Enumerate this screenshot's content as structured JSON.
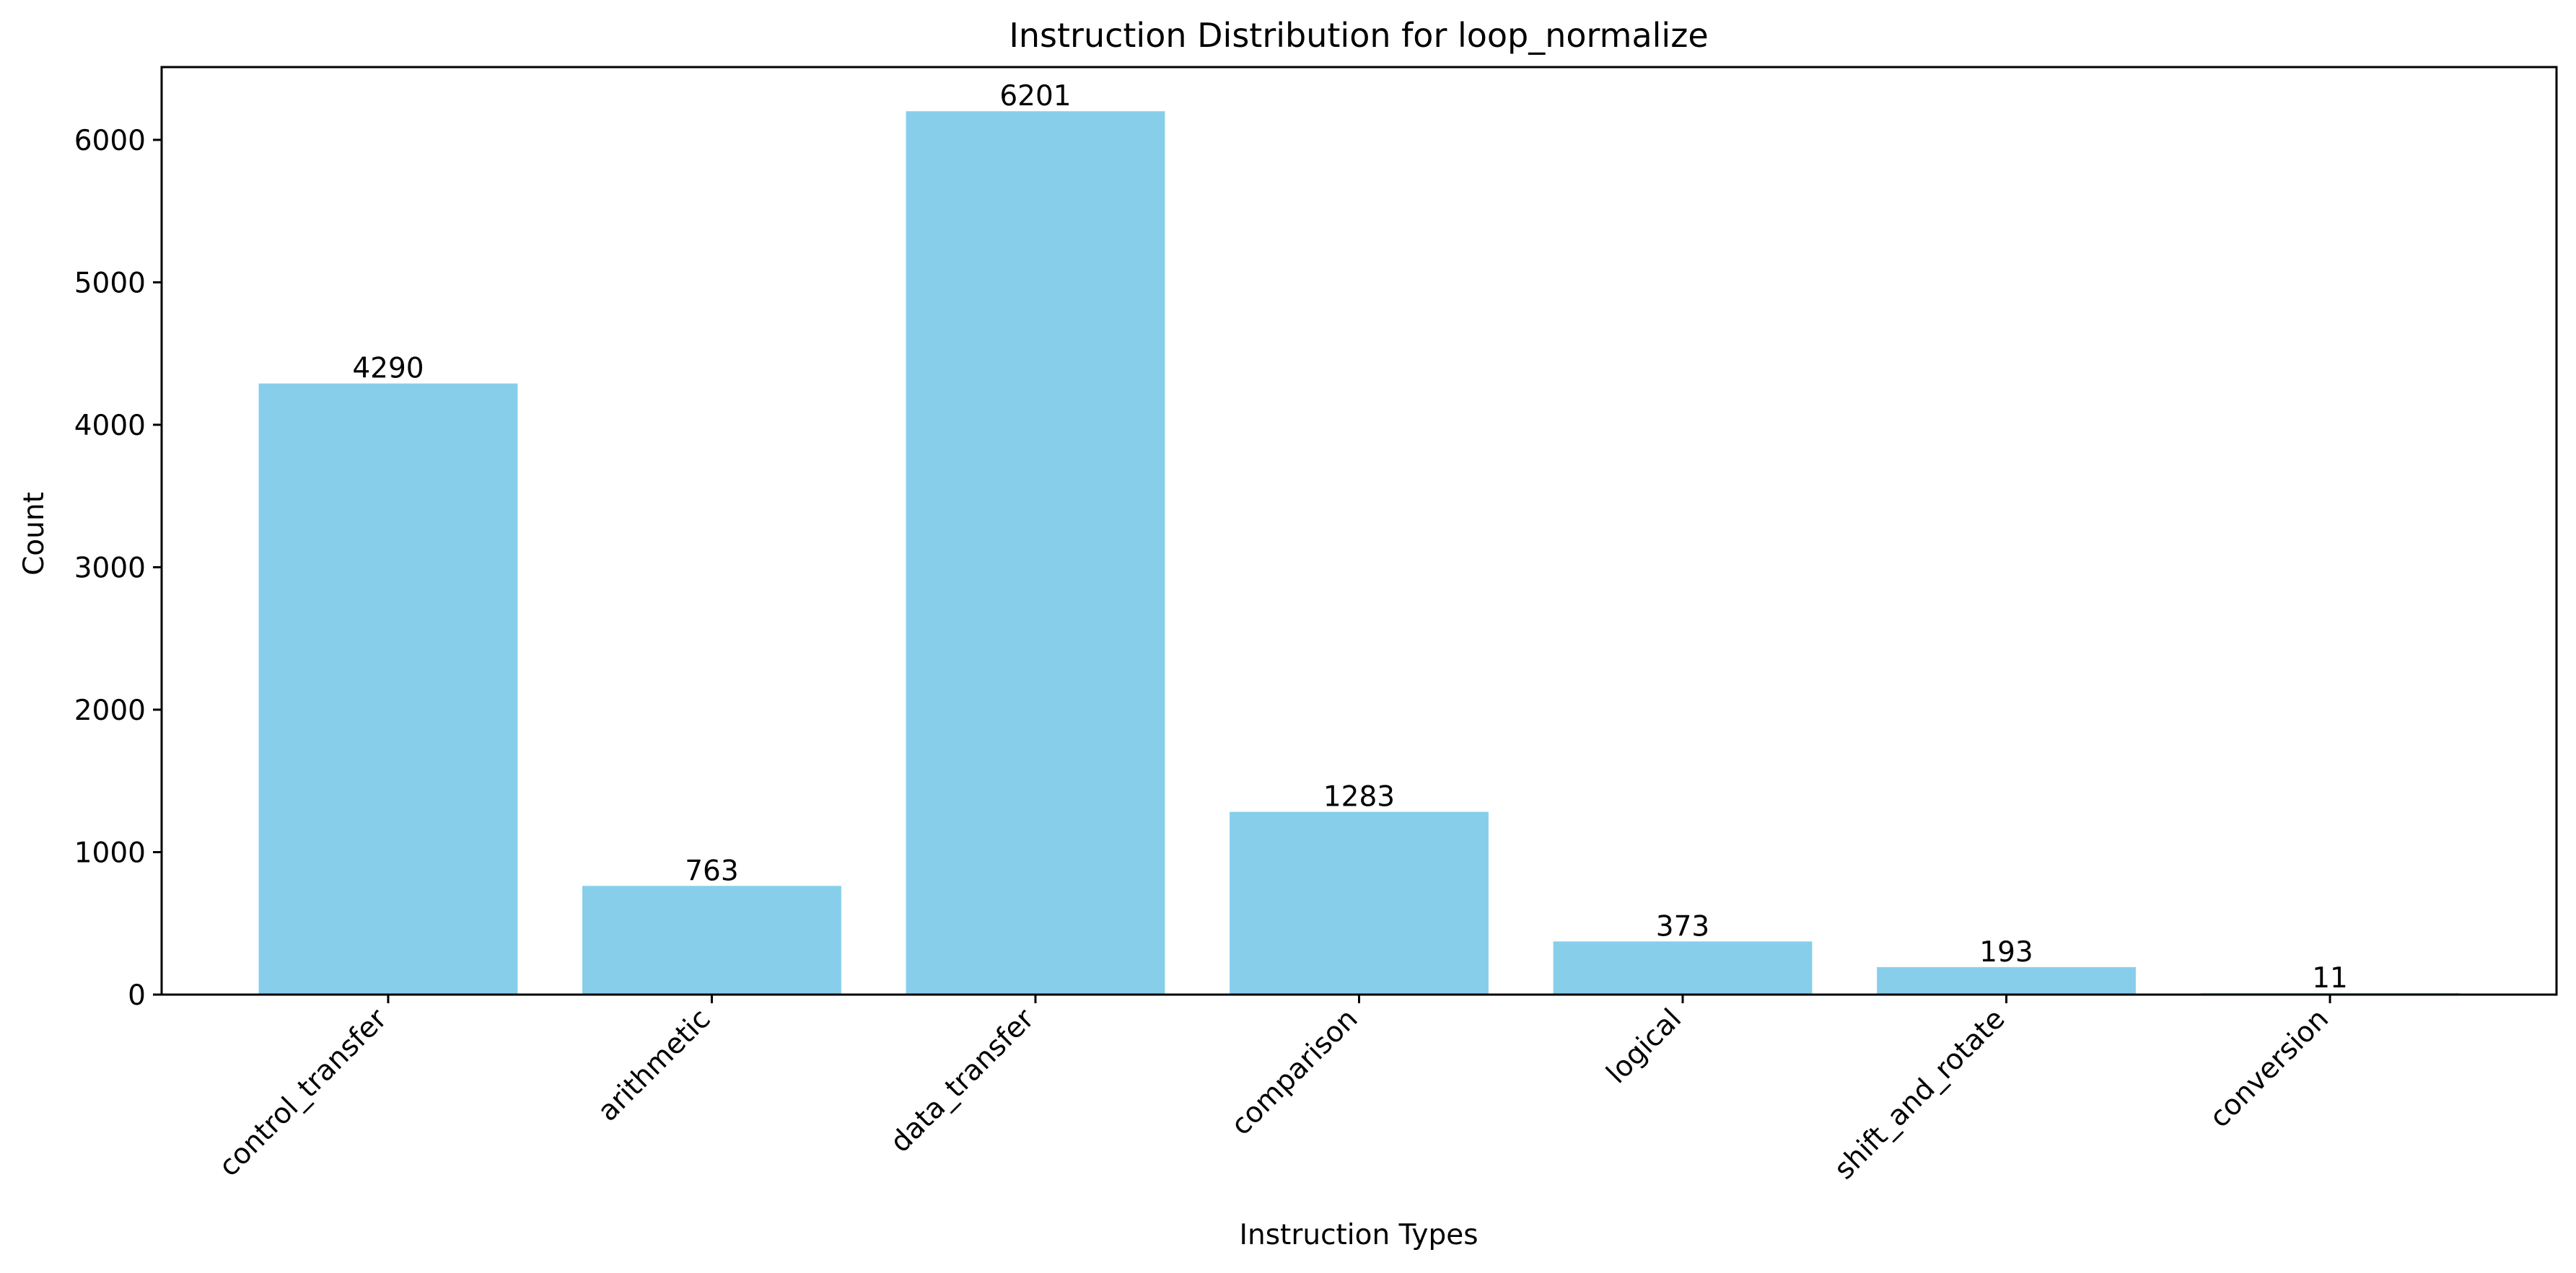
{
  "chart_data": {
    "type": "bar",
    "title": "Instruction Distribution for loop_normalize",
    "xlabel": "Instruction Types",
    "ylabel": "Count",
    "categories": [
      "control_transfer",
      "arithmetic",
      "data_transfer",
      "comparison",
      "logical",
      "shift_and_rotate",
      "conversion"
    ],
    "values": [
      4290,
      763,
      6201,
      1283,
      373,
      193,
      11
    ],
    "ylim": [
      0,
      6511
    ],
    "yticks": [
      0,
      1000,
      2000,
      3000,
      4000,
      5000,
      6000
    ],
    "grid": false,
    "legend": "none",
    "bar_color": "#87CEEB"
  }
}
